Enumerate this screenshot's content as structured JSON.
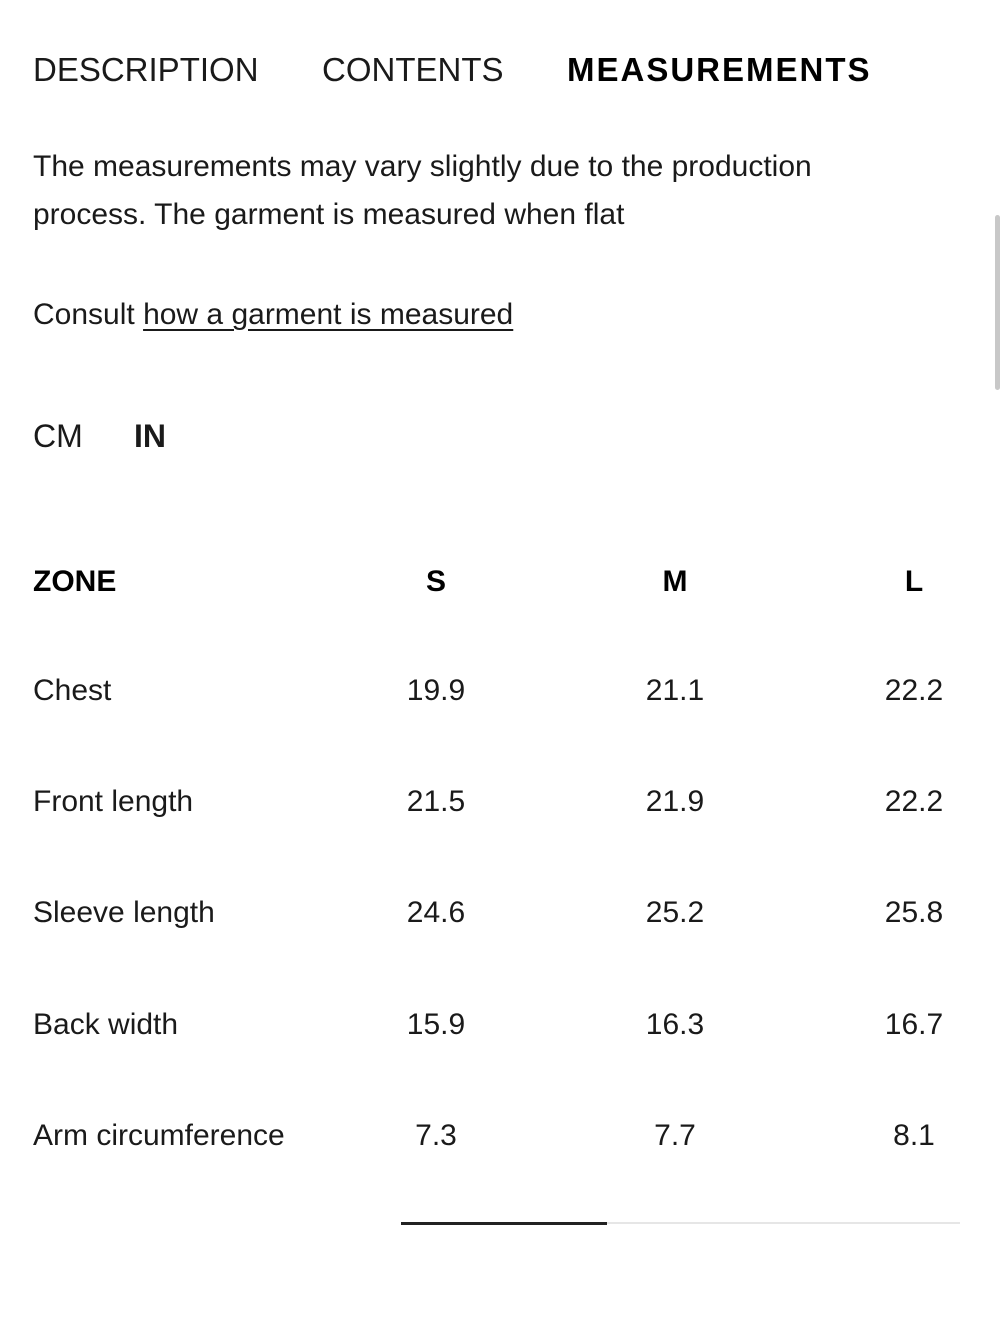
{
  "tabs": [
    "DESCRIPTION",
    "CONTENTS",
    "MEASUREMENTS"
  ],
  "description": "The measurements may vary slightly due to the production process. The garment is measured when flat",
  "consult": {
    "text": "Consult",
    "link": "how a garment is measured"
  },
  "units": [
    "CM",
    "IN"
  ],
  "table": {
    "header": [
      "ZONE",
      "S",
      "M",
      "L"
    ],
    "rows": [
      [
        "Chest",
        "19.9",
        "21.1",
        "22.2"
      ],
      [
        "Front length",
        "21.5",
        "21.9",
        "22.2"
      ],
      [
        "Sleeve length",
        "24.6",
        "25.2",
        "25.8"
      ],
      [
        "Back width",
        "15.9",
        "16.3",
        "16.7"
      ],
      [
        "Arm circumference",
        "7.3",
        "7.7",
        "8.1"
      ]
    ]
  }
}
